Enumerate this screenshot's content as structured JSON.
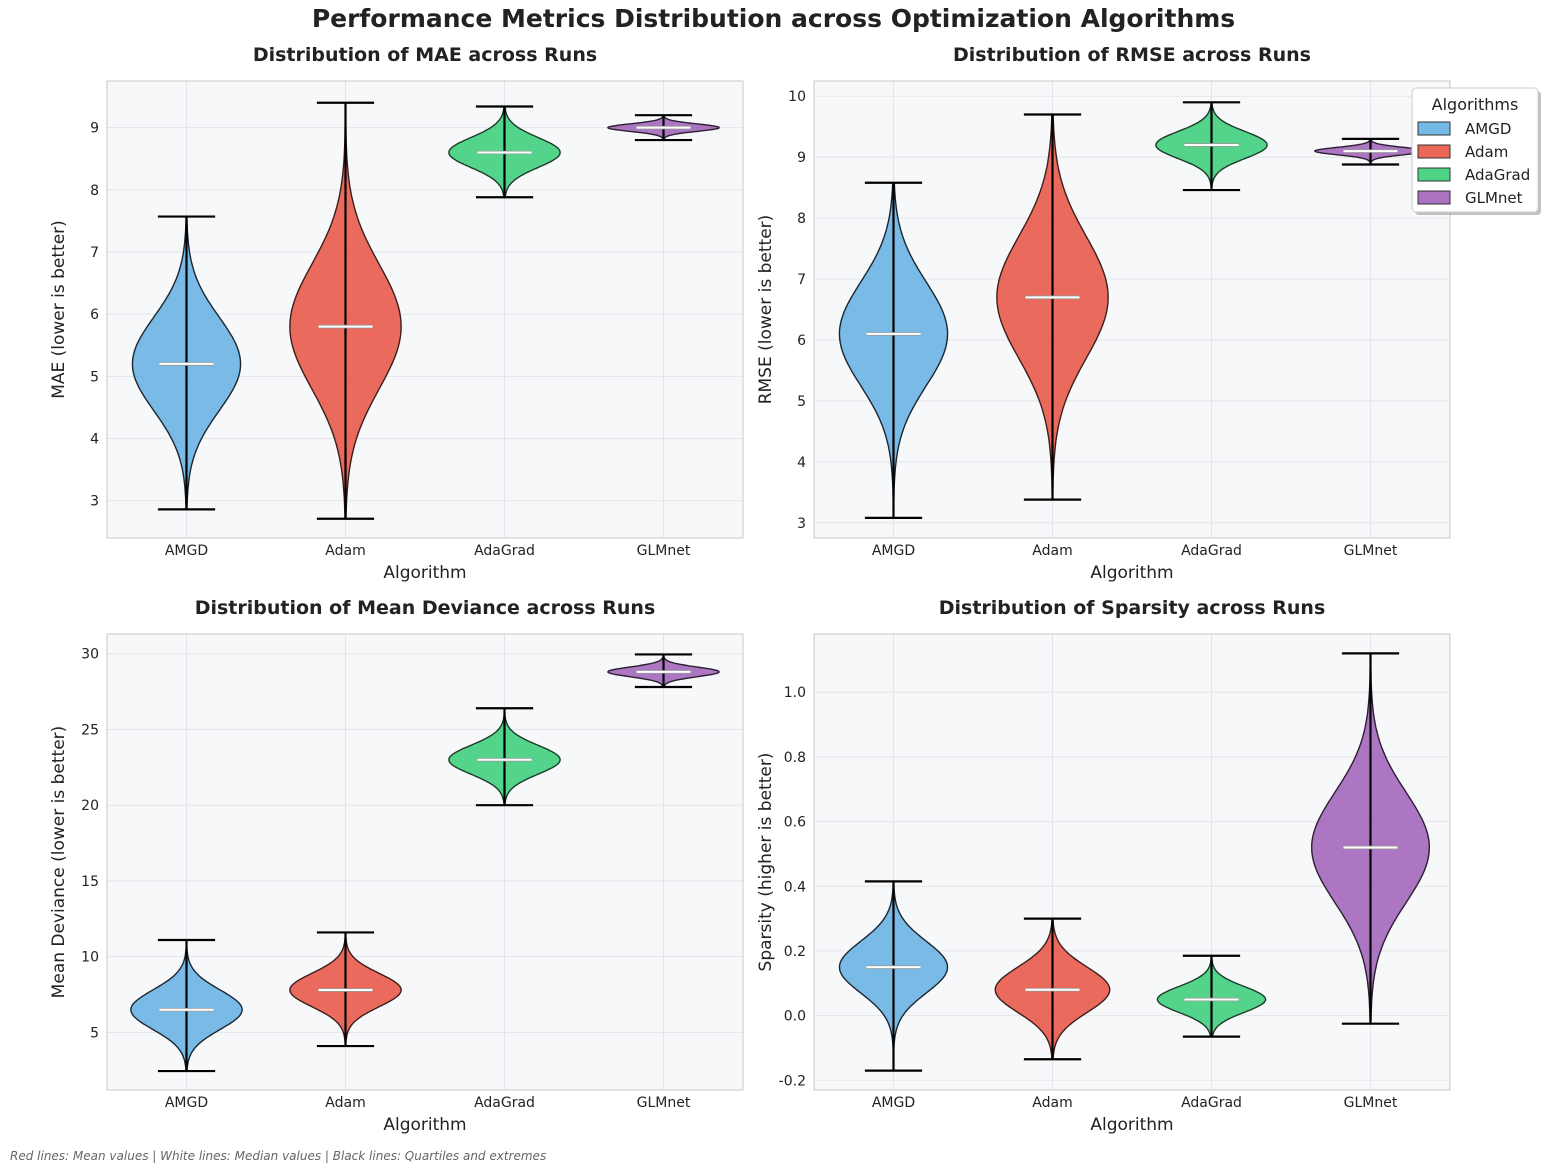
{
  "figure": {
    "title": "Performance Metrics Distribution across Optimization Algorithms",
    "footnote": "Red lines: Mean values | White lines: Median values | Black lines: Quartiles and extremes"
  },
  "legend": {
    "title": "Algorithms",
    "placement": "top-right of RMSE panel",
    "items": [
      {
        "label": "AMGD",
        "color": "#5DADE2"
      },
      {
        "label": "Adam",
        "color": "#E74C3C"
      },
      {
        "label": "AdaGrad",
        "color": "#2ECC71"
      },
      {
        "label": "GLMnet",
        "color": "#9B59B6"
      }
    ]
  },
  "chart_data": [
    {
      "type": "violin",
      "title": "Distribution of MAE across Runs",
      "xlabel": "Algorithm",
      "ylabel": "MAE (lower is better)",
      "ylim": [
        2.4,
        9.75
      ],
      "yticks": [
        3,
        4,
        5,
        6,
        7,
        8,
        9
      ],
      "grid": true,
      "categories": [
        "AMGD",
        "Adam",
        "AdaGrad",
        "GLMnet"
      ],
      "series": [
        {
          "name": "AMGD",
          "min": 2.86,
          "max": 7.57,
          "median": 5.2,
          "mode": 5.2,
          "spread": 0.75,
          "maxhalfwidth": 0.34
        },
        {
          "name": "Adam",
          "min": 2.71,
          "max": 9.4,
          "median": 5.8,
          "mode": 5.8,
          "spread": 1.0,
          "maxhalfwidth": 0.35
        },
        {
          "name": "AdaGrad",
          "min": 7.88,
          "max": 9.34,
          "median": 8.6,
          "mode": 8.6,
          "spread": 0.24,
          "maxhalfwidth": 0.35
        },
        {
          "name": "GLMnet",
          "min": 8.8,
          "max": 9.2,
          "median": 9.0,
          "mode": 9.0,
          "spread": 0.06,
          "maxhalfwidth": 0.35
        }
      ]
    },
    {
      "type": "violin",
      "title": "Distribution of RMSE across Runs",
      "xlabel": "Algorithm",
      "ylabel": "RMSE (lower is better)",
      "ylim": [
        2.75,
        10.25
      ],
      "yticks": [
        3,
        4,
        5,
        6,
        7,
        8,
        9,
        10
      ],
      "grid": true,
      "categories": [
        "AMGD",
        "Adam",
        "AdaGrad",
        "GLMnet"
      ],
      "series": [
        {
          "name": "AMGD",
          "min": 3.08,
          "max": 8.58,
          "median": 6.1,
          "mode": 6.1,
          "spread": 0.85,
          "maxhalfwidth": 0.34
        },
        {
          "name": "Adam",
          "min": 3.38,
          "max": 9.7,
          "median": 6.7,
          "mode": 6.7,
          "spread": 1.0,
          "maxhalfwidth": 0.35
        },
        {
          "name": "AdaGrad",
          "min": 8.46,
          "max": 9.9,
          "median": 9.2,
          "mode": 9.2,
          "spread": 0.22,
          "maxhalfwidth": 0.35
        },
        {
          "name": "GLMnet",
          "min": 8.88,
          "max": 9.3,
          "median": 9.1,
          "mode": 9.1,
          "spread": 0.06,
          "maxhalfwidth": 0.35
        }
      ]
    },
    {
      "type": "violin",
      "title": "Distribution of Mean Deviance across Runs",
      "xlabel": "Algorithm",
      "ylabel": "Mean Deviance (lower is better)",
      "ylim": [
        1.2,
        31.3
      ],
      "yticks": [
        5,
        10,
        15,
        20,
        25,
        30
      ],
      "grid": true,
      "categories": [
        "AMGD",
        "Adam",
        "AdaGrad",
        "GLMnet"
      ],
      "series": [
        {
          "name": "AMGD",
          "min": 2.45,
          "max": 11.1,
          "median": 6.5,
          "mode": 6.5,
          "spread": 1.3,
          "maxhalfwidth": 0.35
        },
        {
          "name": "Adam",
          "min": 4.1,
          "max": 11.6,
          "median": 7.8,
          "mode": 7.8,
          "spread": 1.1,
          "maxhalfwidth": 0.35
        },
        {
          "name": "AdaGrad",
          "min": 20.0,
          "max": 26.4,
          "median": 23.0,
          "mode": 23.0,
          "spread": 0.95,
          "maxhalfwidth": 0.35
        },
        {
          "name": "GLMnet",
          "min": 27.8,
          "max": 29.95,
          "median": 28.8,
          "mode": 28.8,
          "spread": 0.32,
          "maxhalfwidth": 0.35
        }
      ]
    },
    {
      "type": "violin",
      "title": "Distribution of Sparsity across Runs",
      "xlabel": "Algorithm",
      "ylabel": "Sparsity (higher is better)",
      "ylim": [
        -0.23,
        1.18
      ],
      "yticks": [
        -0.2,
        0.0,
        0.2,
        0.4,
        0.6,
        0.8,
        1.0
      ],
      "grid": true,
      "categories": [
        "AMGD",
        "Adam",
        "AdaGrad",
        "GLMnet"
      ],
      "series": [
        {
          "name": "AMGD",
          "min": -0.17,
          "max": 0.415,
          "median": 0.15,
          "mode": 0.15,
          "spread": 0.08,
          "maxhalfwidth": 0.34
        },
        {
          "name": "Adam",
          "min": -0.135,
          "max": 0.3,
          "median": 0.08,
          "mode": 0.08,
          "spread": 0.07,
          "maxhalfwidth": 0.36
        },
        {
          "name": "AdaGrad",
          "min": -0.065,
          "max": 0.185,
          "median": 0.05,
          "mode": 0.05,
          "spread": 0.04,
          "maxhalfwidth": 0.34
        },
        {
          "name": "GLMnet",
          "min": -0.025,
          "max": 1.12,
          "median": 0.52,
          "mode": 0.52,
          "spread": 0.17,
          "maxhalfwidth": 0.37
        }
      ]
    }
  ]
}
